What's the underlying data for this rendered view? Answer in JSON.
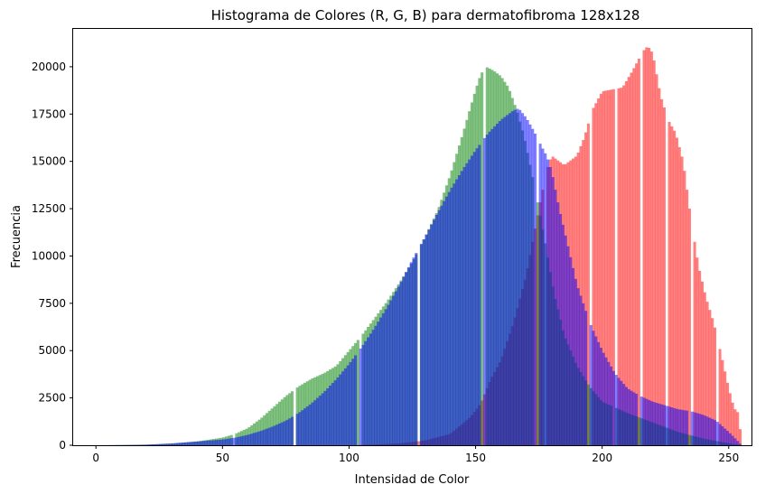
{
  "chart_data": {
    "type": "histogram",
    "title": "Histograma de Colores (R, G, B) para dermatofibroma 128x128",
    "xlabel": "Intensidad de Color",
    "ylabel": "Frecuencia",
    "xlim": [
      -9,
      259
    ],
    "ylim": [
      0,
      22000
    ],
    "xticks": [
      0,
      50,
      100,
      150,
      200,
      250
    ],
    "yticks": [
      0,
      2500,
      5000,
      7500,
      10000,
      12500,
      15000,
      17500,
      20000
    ],
    "grid": false,
    "legend": "none",
    "bin_width": 1,
    "opacity": 0.5,
    "series": [
      {
        "color": "#ff0000",
        "points": [
          [
            0,
            0
          ],
          [
            100,
            0
          ],
          [
            110,
            30
          ],
          [
            120,
            100
          ],
          [
            130,
            250
          ],
          [
            140,
            600
          ],
          [
            148,
            1500
          ],
          [
            152,
            2200
          ],
          [
            156,
            3500
          ],
          [
            160,
            4500
          ],
          [
            165,
            6500
          ],
          [
            170,
            9000
          ],
          [
            175,
            12500
          ],
          [
            178,
            14500
          ],
          [
            180,
            15300
          ],
          [
            185,
            14800
          ],
          [
            190,
            15300
          ],
          [
            193,
            16300
          ],
          [
            196,
            17700
          ],
          [
            200,
            18700
          ],
          [
            204,
            18800
          ],
          [
            208,
            18900
          ],
          [
            212,
            19800
          ],
          [
            216,
            20800
          ],
          [
            218,
            21100
          ],
          [
            220,
            20700
          ],
          [
            223,
            18500
          ],
          [
            226,
            17200
          ],
          [
            229,
            16500
          ],
          [
            232,
            15000
          ],
          [
            235,
            12000
          ],
          [
            238,
            9500
          ],
          [
            241,
            7800
          ],
          [
            244,
            6500
          ],
          [
            247,
            4800
          ],
          [
            250,
            3000
          ],
          [
            252,
            2000
          ],
          [
            253,
            1800
          ],
          [
            254,
            1700
          ],
          [
            255,
            0
          ]
        ],
        "gaps": [
          177,
          195,
          205,
          215,
          225,
          235,
          245
        ]
      },
      {
        "color": "#008000",
        "points": [
          [
            0,
            0
          ],
          [
            10,
            10
          ],
          [
            20,
            30
          ],
          [
            30,
            80
          ],
          [
            40,
            200
          ],
          [
            50,
            400
          ],
          [
            55,
            600
          ],
          [
            60,
            900
          ],
          [
            65,
            1400
          ],
          [
            70,
            2000
          ],
          [
            75,
            2600
          ],
          [
            80,
            3100
          ],
          [
            85,
            3500
          ],
          [
            90,
            3800
          ],
          [
            95,
            4200
          ],
          [
            100,
            5000
          ],
          [
            105,
            5800
          ],
          [
            110,
            6700
          ],
          [
            115,
            7600
          ],
          [
            120,
            8600
          ],
          [
            125,
            9700
          ],
          [
            130,
            11000
          ],
          [
            135,
            12400
          ],
          [
            140,
            14300
          ],
          [
            145,
            16500
          ],
          [
            150,
            18800
          ],
          [
            152,
            19600
          ],
          [
            154,
            20000
          ],
          [
            157,
            19800
          ],
          [
            160,
            19500
          ],
          [
            163,
            18900
          ],
          [
            166,
            17800
          ],
          [
            169,
            16400
          ],
          [
            172,
            14500
          ],
          [
            175,
            12500
          ],
          [
            178,
            10300
          ],
          [
            181,
            8000
          ],
          [
            185,
            5800
          ],
          [
            190,
            4200
          ],
          [
            195,
            3100
          ],
          [
            200,
            2300
          ],
          [
            210,
            1700
          ],
          [
            220,
            1200
          ],
          [
            230,
            700
          ],
          [
            240,
            350
          ],
          [
            250,
            100
          ],
          [
            255,
            0
          ]
        ],
        "gaps": [
          54,
          78,
          104,
          127,
          153,
          173,
          204
        ]
      },
      {
        "color": "#0000ff",
        "points": [
          [
            0,
            0
          ],
          [
            10,
            10
          ],
          [
            20,
            30
          ],
          [
            30,
            100
          ],
          [
            40,
            200
          ],
          [
            50,
            300
          ],
          [
            55,
            400
          ],
          [
            60,
            550
          ],
          [
            65,
            750
          ],
          [
            70,
            1000
          ],
          [
            75,
            1300
          ],
          [
            80,
            1700
          ],
          [
            85,
            2200
          ],
          [
            90,
            2800
          ],
          [
            95,
            3500
          ],
          [
            100,
            4300
          ],
          [
            105,
            5200
          ],
          [
            110,
            6200
          ],
          [
            115,
            7300
          ],
          [
            120,
            8500
          ],
          [
            125,
            9800
          ],
          [
            130,
            11000
          ],
          [
            135,
            12300
          ],
          [
            140,
            13500
          ],
          [
            145,
            14600
          ],
          [
            150,
            15600
          ],
          [
            155,
            16500
          ],
          [
            160,
            17200
          ],
          [
            165,
            17700
          ],
          [
            167,
            17800
          ],
          [
            170,
            17300
          ],
          [
            173,
            16600
          ],
          [
            176,
            15800
          ],
          [
            178,
            15300
          ],
          [
            180,
            14500
          ],
          [
            183,
            12500
          ],
          [
            186,
            10800
          ],
          [
            190,
            8500
          ],
          [
            195,
            6500
          ],
          [
            200,
            5000
          ],
          [
            205,
            3800
          ],
          [
            210,
            3000
          ],
          [
            215,
            2600
          ],
          [
            220,
            2300
          ],
          [
            225,
            2100
          ],
          [
            230,
            1900
          ],
          [
            235,
            1800
          ],
          [
            240,
            1600
          ],
          [
            245,
            1300
          ],
          [
            250,
            700
          ],
          [
            253,
            300
          ],
          [
            255,
            0
          ]
        ],
        "gaps": [
          78,
          103,
          127,
          152,
          174,
          194,
          214,
          234
        ]
      }
    ]
  }
}
